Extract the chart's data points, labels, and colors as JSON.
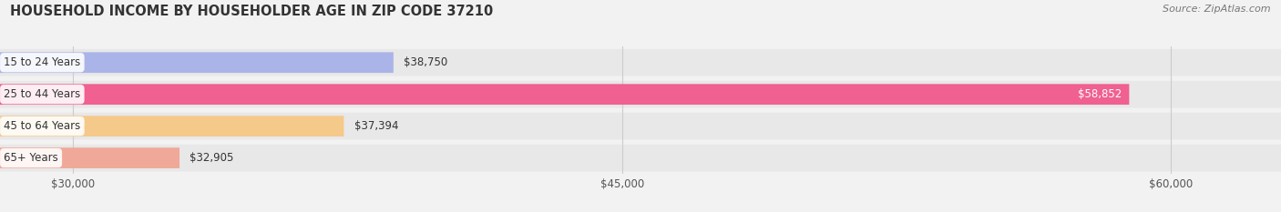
{
  "title": "HOUSEHOLD INCOME BY HOUSEHOLDER AGE IN ZIP CODE 37210",
  "source": "Source: ZipAtlas.com",
  "categories": [
    "15 to 24 Years",
    "25 to 44 Years",
    "45 to 64 Years",
    "65+ Years"
  ],
  "values": [
    38750,
    58852,
    37394,
    32905
  ],
  "bar_colors": [
    "#aab4e8",
    "#f06090",
    "#f5c98a",
    "#f0a898"
  ],
  "value_labels": [
    "$38,750",
    "$58,852",
    "$37,394",
    "$32,905"
  ],
  "xlim_min": 28000,
  "xlim_max": 63000,
  "xticks": [
    30000,
    45000,
    60000
  ],
  "xtick_labels": [
    "$30,000",
    "$45,000",
    "$60,000"
  ],
  "title_fontsize": 10.5,
  "source_fontsize": 8,
  "label_fontsize": 8.5,
  "tick_fontsize": 8.5,
  "bg_color": "#f2f2f2"
}
